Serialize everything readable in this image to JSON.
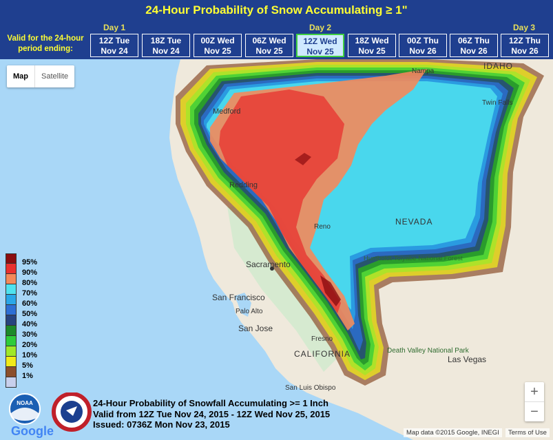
{
  "header": {
    "title": "24-Hour Probability of Snow Accumulating ≥ 1\"",
    "valid_label_line1": "Valid for the 24-hour",
    "valid_label_line2": "period ending:",
    "days": [
      "Day 1",
      "Day 2",
      "Day 3"
    ],
    "tabs": [
      {
        "line1": "12Z Tue",
        "line2": "Nov 24",
        "selected": false
      },
      {
        "line1": "18Z Tue",
        "line2": "Nov 24",
        "selected": false
      },
      {
        "line1": "00Z Wed",
        "line2": "Nov 25",
        "selected": false
      },
      {
        "line1": "06Z Wed",
        "line2": "Nov 25",
        "selected": false
      },
      {
        "line1": "12Z Wed",
        "line2": "Nov 25",
        "selected": true
      },
      {
        "line1": "18Z Wed",
        "line2": "Nov 25",
        "selected": false
      },
      {
        "line1": "00Z Thu",
        "line2": "Nov 26",
        "selected": false
      },
      {
        "line1": "06Z Thu",
        "line2": "Nov 26",
        "selected": false
      },
      {
        "line1": "12Z Thu",
        "line2": "Nov 26",
        "selected": false
      }
    ]
  },
  "map_type": {
    "map": "Map",
    "satellite": "Satellite",
    "selected": "Map"
  },
  "legend": [
    {
      "label": "95%",
      "color": "#8b0d10"
    },
    {
      "label": "90%",
      "color": "#e8312f"
    },
    {
      "label": "80%",
      "color": "#f4895a"
    },
    {
      "label": "70%",
      "color": "#4fe2ef"
    },
    {
      "label": "60%",
      "color": "#2aa7e8"
    },
    {
      "label": "50%",
      "color": "#2d6fd4"
    },
    {
      "label": "40%",
      "color": "#27447f"
    },
    {
      "label": "30%",
      "color": "#1d8a2a"
    },
    {
      "label": "20%",
      "color": "#2fcc3a"
    },
    {
      "label": "10%",
      "color": "#9fe82a"
    },
    {
      "label": "5%",
      "color": "#f0ea1a"
    },
    {
      "label": "",
      "color": "#8b4f2c"
    },
    {
      "label": "1%",
      "color": "#c8d0ec"
    }
  ],
  "places": [
    {
      "name": "Medford"
    },
    {
      "name": "Redding"
    },
    {
      "name": "Sacramento"
    },
    {
      "name": "San Francisco"
    },
    {
      "name": "Palo Alto"
    },
    {
      "name": "San Jose"
    },
    {
      "name": "Fresno"
    },
    {
      "name": "CALIFORNIA"
    },
    {
      "name": "Reno"
    },
    {
      "name": "NEVADA"
    },
    {
      "name": "Nampa"
    },
    {
      "name": "IDAHO"
    },
    {
      "name": "Twin Falls"
    },
    {
      "name": "Humboldt-Toiyabe National Forest"
    },
    {
      "name": "Death Valley National Park"
    },
    {
      "name": "Las Vegas"
    },
    {
      "name": "San Luis Obispo"
    }
  ],
  "footer": {
    "line1": "24-Hour Probability of Snowfall Accumulating >= 1 Inch",
    "line2": "Valid from 12Z Tue Nov 24, 2015 - 12Z Wed Nov 25, 2015",
    "line3": "Issued: 0736Z Mon Nov 23, 2015"
  },
  "logos": {
    "noaa": "NOAA",
    "nws": "NATIONAL WEATHER SERVICE",
    "google": "Google"
  },
  "zoom": {
    "in": "+",
    "out": "−"
  },
  "attribution": "Map data ©2015 Google, INEGI",
  "terms": "Terms of Use"
}
